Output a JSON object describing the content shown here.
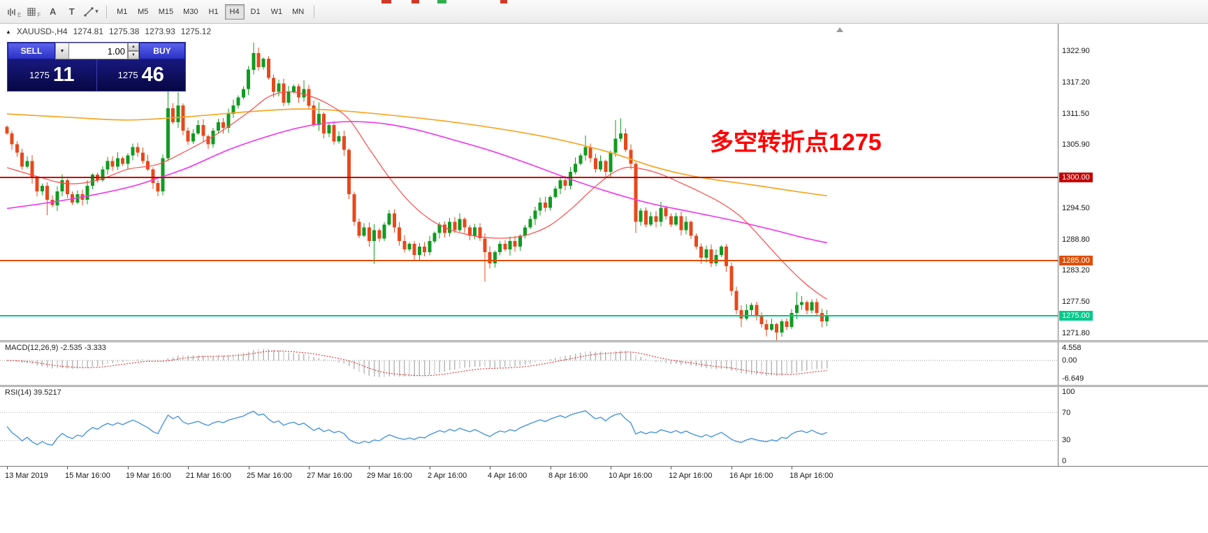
{
  "toolbar": {
    "tools": [
      {
        "name": "bar-chart-tool",
        "sub": "E"
      },
      {
        "name": "grid-tool",
        "sub": "F"
      },
      {
        "name": "text-label-tool",
        "glyph": "A"
      },
      {
        "name": "text-box-tool",
        "glyph": "T"
      },
      {
        "name": "crosshair-draw-tool",
        "dropdown": true
      }
    ],
    "timeframes": [
      {
        "label": "M1",
        "active": false
      },
      {
        "label": "M5",
        "active": false
      },
      {
        "label": "M15",
        "active": false
      },
      {
        "label": "M30",
        "active": false
      },
      {
        "label": "H1",
        "active": false
      },
      {
        "label": "H4",
        "active": true
      },
      {
        "label": "D1",
        "active": false
      },
      {
        "label": "W1",
        "active": false
      },
      {
        "label": "MN",
        "active": false
      }
    ],
    "clipped_marks": [
      {
        "x": 546,
        "w": 14,
        "color": "#d03a28"
      },
      {
        "x": 589,
        "w": 11,
        "color": "#d03a28"
      },
      {
        "x": 626,
        "w": 13,
        "color": "#2fae4e"
      },
      {
        "x": 716,
        "w": 10,
        "color": "#d03a28"
      }
    ]
  },
  "chart": {
    "header": {
      "symbol": "XAUUSD-,H4",
      "open": "1274.81",
      "high": "1275.38",
      "low": "1273.93",
      "close": "1275.12"
    },
    "trade": {
      "sell_label": "SELL",
      "buy_label": "BUY",
      "volume": "1.00",
      "sell_price_small": "1275",
      "sell_price_big": "11",
      "buy_price_small": "1275",
      "buy_price_big": "46"
    },
    "annotation": {
      "text": "多空转折点1275",
      "color": "#ff0000"
    },
    "price_axis_ticks": [
      "1322.90",
      "1317.20",
      "1311.50",
      "1305.90",
      "1294.50",
      "1288.80",
      "1283.20",
      "1277.50",
      "1271.80"
    ],
    "hlines": [
      {
        "price": 1300.0,
        "label": "1300.00",
        "color": "#c40000"
      },
      {
        "price": 1285.0,
        "label": "1285.00",
        "color": "#e04e00"
      },
      {
        "price": 1275.0,
        "label": "1275.00",
        "color": "#00c98a"
      }
    ]
  },
  "indicators": {
    "macd_label": "MACD(12,26,9) -2.535 -3.333",
    "macd_axis": [
      "4.558",
      "0.00",
      "-6.649"
    ],
    "rsi_label": "RSI(14) 39.5217",
    "rsi_axis": [
      "100",
      "70",
      "30",
      "0"
    ]
  },
  "time_axis": {
    "labels": [
      "13 Mar 2019",
      "15 Mar 16:00",
      "19 Mar 16:00",
      "21 Mar 16:00",
      "25 Mar 16:00",
      "27 Mar 16:00",
      "29 Mar 16:00",
      "2 Apr 16:00",
      "4 Apr 16:00",
      "8 Apr 16:00",
      "10 Apr 16:00",
      "12 Apr 16:00",
      "16 Apr 16:00",
      "18 Apr 16:00"
    ]
  },
  "chart_data": {
    "type": "candlestick",
    "symbol": "XAUUSD",
    "timeframe": "H4",
    "title": "XAUUSD-,H4",
    "y_range": [
      1270.6,
      1327.8
    ],
    "y_ticks": [
      1322.9,
      1317.2,
      1311.5,
      1305.9,
      1294.5,
      1288.8,
      1283.2,
      1277.5,
      1271.8
    ],
    "x_tick_labels": [
      "13 Mar 2019",
      "15 Mar 16:00",
      "19 Mar 16:00",
      "21 Mar 16:00",
      "25 Mar 16:00",
      "27 Mar 16:00",
      "29 Mar 16:00",
      "2 Apr 16:00",
      "4 Apr 16:00",
      "8 Apr 16:00",
      "10 Apr 16:00",
      "12 Apr 16:00",
      "16 Apr 16:00",
      "18 Apr 16:00"
    ],
    "candles_per_tick": 12,
    "closes": [
      1308.0,
      1306.0,
      1304.5,
      1302.0,
      1303.0,
      1300.0,
      1297.5,
      1298.5,
      1296.0,
      1295.0,
      1297.5,
      1299.5,
      1297.0,
      1295.5,
      1297.0,
      1296.0,
      1298.5,
      1300.5,
      1299.5,
      1301.5,
      1303.0,
      1302.0,
      1303.5,
      1302.5,
      1304.0,
      1305.5,
      1304.5,
      1303.0,
      1301.5,
      1299.0,
      1297.5,
      1303.5,
      1312.5,
      1310.0,
      1313.0,
      1308.5,
      1306.5,
      1308.0,
      1309.5,
      1307.5,
      1306.0,
      1308.5,
      1310.0,
      1309.0,
      1311.5,
      1313.0,
      1314.5,
      1316.0,
      1319.5,
      1322.5,
      1320.0,
      1321.5,
      1318.0,
      1315.5,
      1317.0,
      1313.5,
      1315.5,
      1316.5,
      1314.5,
      1316.0,
      1313.0,
      1309.5,
      1311.5,
      1308.0,
      1309.5,
      1306.5,
      1307.5,
      1305.0,
      1297.0,
      1292.0,
      1289.5,
      1291.0,
      1288.5,
      1290.5,
      1289.0,
      1291.5,
      1293.5,
      1291.0,
      1288.5,
      1287.0,
      1288.0,
      1286.0,
      1287.5,
      1286.5,
      1288.5,
      1290.0,
      1291.5,
      1290.0,
      1292.0,
      1290.5,
      1292.5,
      1291.0,
      1289.5,
      1291.0,
      1289.0,
      1286.5,
      1284.5,
      1286.5,
      1288.0,
      1287.0,
      1288.5,
      1287.5,
      1289.5,
      1291.0,
      1292.5,
      1294.0,
      1295.5,
      1294.5,
      1296.5,
      1298.0,
      1299.5,
      1298.5,
      1301.0,
      1302.5,
      1304.0,
      1305.5,
      1303.5,
      1301.5,
      1303.0,
      1301.0,
      1304.5,
      1307.0,
      1308.0,
      1305.0,
      1302.5,
      1292.0,
      1294.0,
      1291.5,
      1293.0,
      1292.0,
      1294.5,
      1293.0,
      1291.5,
      1293.0,
      1290.5,
      1292.0,
      1289.5,
      1287.5,
      1285.5,
      1287.0,
      1284.5,
      1286.0,
      1287.5,
      1284.0,
      1279.5,
      1276.0,
      1274.5,
      1276.0,
      1277.0,
      1275.0,
      1273.5,
      1272.5,
      1273.5,
      1272.0,
      1274.0,
      1273.0,
      1275.5,
      1277.0,
      1277.5,
      1276.0,
      1277.5,
      1275.5,
      1274.0,
      1275.1
    ],
    "wick_overrides": {
      "8": {
        "l": 1293.2
      },
      "32": {
        "h": 1316.3
      },
      "34": {
        "h": 1315.4
      },
      "49": {
        "h": 1324.4
      },
      "59": {
        "h": 1317.6
      },
      "62": {
        "h": 1313.6
      },
      "73": {
        "l": 1284.4
      },
      "95": {
        "l": 1281.2
      },
      "115": {
        "h": 1307.6
      },
      "121": {
        "h": 1310.4
      },
      "122": {
        "h": 1310.7
      },
      "125": {
        "l": 1290.0
      },
      "146": {
        "l": 1273.0
      },
      "151": {
        "l": 1271.3
      },
      "153": {
        "l": 1270.6
      },
      "157": {
        "h": 1279.3
      }
    },
    "horizontal_levels": [
      1300.0,
      1285.0,
      1275.0
    ],
    "moving_averages": [
      {
        "name": "MA-slow",
        "color": "#f5a623",
        "width": 1.7,
        "points": [
          [
            0,
            1311.5
          ],
          [
            12,
            1310.9
          ],
          [
            24,
            1310.4
          ],
          [
            36,
            1311.0
          ],
          [
            48,
            1311.9
          ],
          [
            58,
            1312.4
          ],
          [
            66,
            1312.1
          ],
          [
            76,
            1311.3
          ],
          [
            88,
            1310.1
          ],
          [
            100,
            1308.5
          ],
          [
            110,
            1306.8
          ],
          [
            120,
            1304.5
          ],
          [
            128,
            1302.1
          ],
          [
            134,
            1300.7
          ],
          [
            140,
            1299.7
          ],
          [
            148,
            1298.7
          ],
          [
            156,
            1297.6
          ],
          [
            163,
            1296.7
          ]
        ]
      },
      {
        "name": "MA-mid",
        "color": "#ee3cee",
        "width": 1.7,
        "points": [
          [
            0,
            1294.4
          ],
          [
            12,
            1296.0
          ],
          [
            24,
            1298.2
          ],
          [
            30,
            1299.9
          ],
          [
            36,
            1301.8
          ],
          [
            44,
            1305.0
          ],
          [
            52,
            1307.5
          ],
          [
            58,
            1309.0
          ],
          [
            64,
            1309.9
          ],
          [
            70,
            1310.1
          ],
          [
            76,
            1309.6
          ],
          [
            82,
            1308.5
          ],
          [
            88,
            1307.0
          ],
          [
            96,
            1304.9
          ],
          [
            104,
            1302.4
          ],
          [
            112,
            1299.7
          ],
          [
            120,
            1297.3
          ],
          [
            128,
            1295.3
          ],
          [
            136,
            1293.8
          ],
          [
            144,
            1292.3
          ],
          [
            152,
            1290.6
          ],
          [
            158,
            1289.2
          ],
          [
            163,
            1288.2
          ]
        ]
      },
      {
        "name": "MA-fast",
        "color": "#ff4a4a",
        "width": 1.2,
        "points": [
          [
            0,
            1301.8
          ],
          [
            6,
            1300.2
          ],
          [
            12,
            1298.9
          ],
          [
            18,
            1299.5
          ],
          [
            24,
            1301.5
          ],
          [
            30,
            1302.4
          ],
          [
            36,
            1305.0
          ],
          [
            42,
            1308.0
          ],
          [
            48,
            1311.8
          ],
          [
            52,
            1314.6
          ],
          [
            56,
            1315.5
          ],
          [
            60,
            1314.8
          ],
          [
            64,
            1313.2
          ],
          [
            68,
            1310.5
          ],
          [
            72,
            1305.2
          ],
          [
            76,
            1300.0
          ],
          [
            80,
            1295.6
          ],
          [
            84,
            1292.5
          ],
          [
            88,
            1290.6
          ],
          [
            92,
            1289.6
          ],
          [
            96,
            1289.1
          ],
          [
            100,
            1289.1
          ],
          [
            104,
            1289.8
          ],
          [
            108,
            1291.4
          ],
          [
            112,
            1294.2
          ],
          [
            116,
            1297.6
          ],
          [
            120,
            1300.6
          ],
          [
            123,
            1301.8
          ],
          [
            126,
            1301.6
          ],
          [
            130,
            1300.6
          ],
          [
            134,
            1299.0
          ],
          [
            138,
            1297.3
          ],
          [
            142,
            1295.4
          ],
          [
            146,
            1292.8
          ],
          [
            150,
            1289.0
          ],
          [
            154,
            1285.0
          ],
          [
            158,
            1281.4
          ],
          [
            161,
            1279.2
          ],
          [
            163,
            1278.0
          ]
        ]
      }
    ],
    "macd": {
      "params": [
        12,
        26,
        9
      ],
      "main_last": -2.535,
      "signal_last": -3.333,
      "axis_ticks": [
        4.558,
        0.0,
        -6.649
      ]
    },
    "rsi": {
      "period": 14,
      "last": 39.5217,
      "levels": [
        70,
        30
      ],
      "range": [
        0,
        100
      ]
    },
    "colors": {
      "up": "#109b21",
      "down": "#e8481c",
      "ma_slow": "#f5a623",
      "ma_mid": "#ee3cee",
      "ma_fast": "#ff4a4a",
      "macd_hist": "#b8b8b8",
      "macd_signal": "#e03030",
      "rsi_line": "#3e8ede"
    }
  }
}
